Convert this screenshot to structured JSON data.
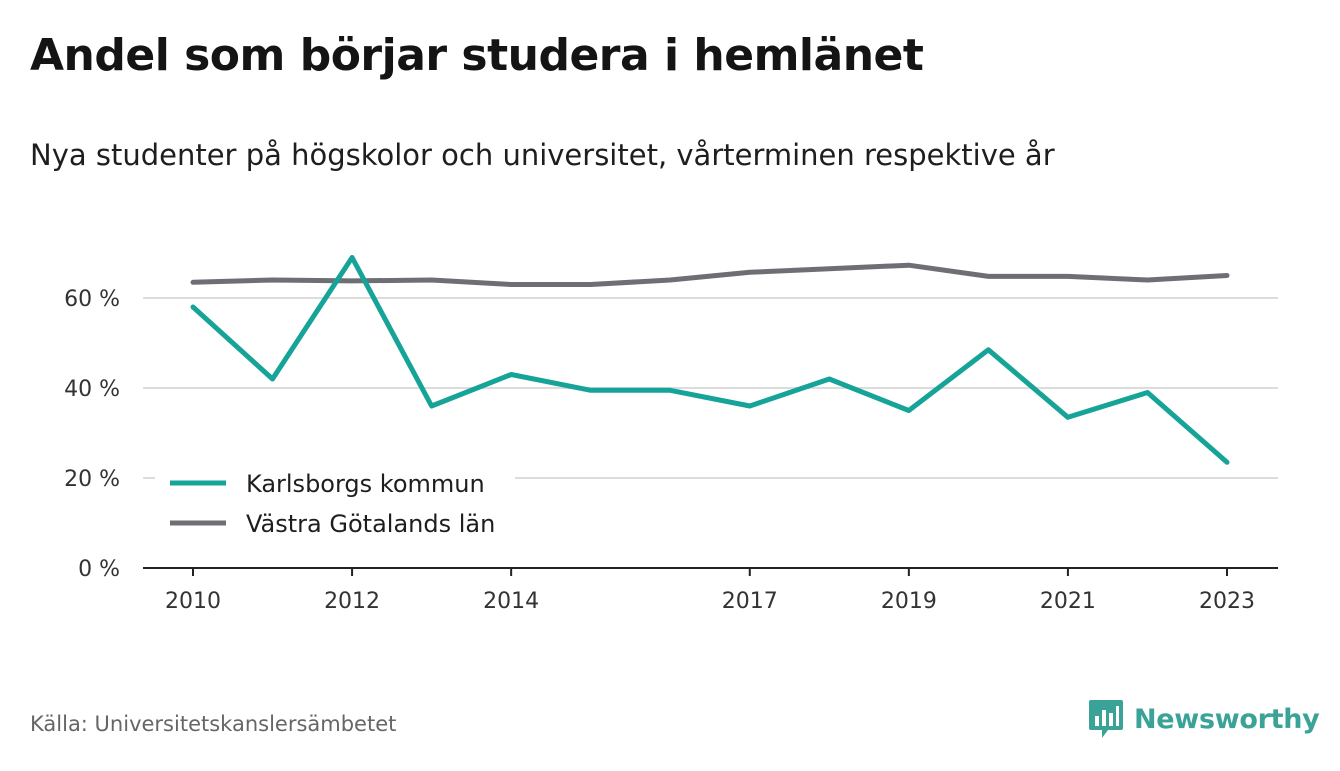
{
  "chart_data": {
    "type": "line",
    "title": "Andel som börjar studera i hemlänet",
    "subtitle": "Nya studenter på högskolor och universitet, vårterminen respektive år",
    "x": [
      2010,
      2011,
      2012,
      2013,
      2014,
      2015,
      2016,
      2017,
      2018,
      2019,
      2020,
      2021,
      2022,
      2023
    ],
    "x_tick_labels": [
      "2010",
      "2012",
      "2014",
      "2017",
      "2019",
      "2021",
      "2023"
    ],
    "y_tick_labels": [
      "0 %",
      "20 %",
      "40 %",
      "60 %"
    ],
    "y_ticks": [
      0,
      20,
      40,
      60
    ],
    "ylim": [
      0,
      70
    ],
    "grid": true,
    "legend_position": "bottom-left",
    "series": [
      {
        "name": "Karlsborgs kommun",
        "color": "#16a398",
        "values": [
          58,
          42,
          69,
          36,
          43,
          39.5,
          39.5,
          36,
          42,
          35,
          48.5,
          33.5,
          39,
          23.5
        ]
      },
      {
        "name": "Västra Götalands län",
        "color": "#6e6e75",
        "values": [
          63.5,
          64,
          63.8,
          64,
          63,
          63,
          64,
          65.7,
          66.5,
          67.3,
          64.8,
          64.8,
          64,
          65
        ]
      }
    ]
  },
  "footer": {
    "source": "Källa: Universitetskanslersämbetet",
    "brand": "Newsworthy"
  }
}
